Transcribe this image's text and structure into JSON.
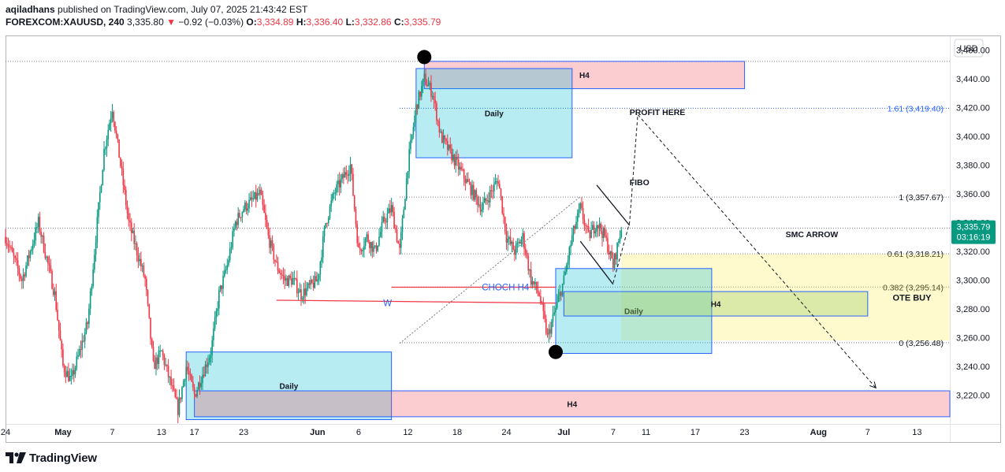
{
  "header": {
    "author": "aqiladhans",
    "published_text": "published on TradingView.com, July 07, 2025 21:43:42 EST",
    "symbol": "FOREXCOM:XAUUSD, 240",
    "last": "3,335.80",
    "change_arrow": "▼",
    "change": "−0.92 (−0.03%)",
    "o_label": "O:",
    "o": "3,334.89",
    "h_label": "H:",
    "h": "3,336.40",
    "l_label": "L:",
    "l": "3,332.86",
    "c_label": "C:",
    "c": "3,335.79"
  },
  "footer": {
    "brand": "TradingView"
  },
  "chart_data": {
    "type": "candlestick",
    "currency": "USD",
    "ylim": [
      3200,
      3470
    ],
    "y_ticks": [
      3220,
      3240,
      3260,
      3280,
      3300,
      3320,
      3340,
      3360,
      3380,
      3400,
      3420,
      3440,
      3460
    ],
    "y_tick_labels": [
      "3,220.00",
      "3,240.00",
      "3,260.00",
      "3,280.00",
      "3,300.00",
      "3,320.00",
      "3,340.00",
      "3,360.00",
      "3,380.00",
      "3,400.00",
      "3,420.00",
      "3,440.00",
      "3,460.00"
    ],
    "x_range": [
      "2025-04-24",
      "2025-08-17"
    ],
    "x_ticks": [
      {
        "date": "2025-04-24",
        "label": "24"
      },
      {
        "date": "2025-05-01",
        "label": "May"
      },
      {
        "date": "2025-05-07",
        "label": "7"
      },
      {
        "date": "2025-05-13",
        "label": "13"
      },
      {
        "date": "2025-05-17",
        "label": "17"
      },
      {
        "date": "2025-05-23",
        "label": "23"
      },
      {
        "date": "2025-06-01",
        "label": "Jun"
      },
      {
        "date": "2025-06-06",
        "label": "6"
      },
      {
        "date": "2025-06-12",
        "label": "12"
      },
      {
        "date": "2025-06-18",
        "label": "18"
      },
      {
        "date": "2025-06-24",
        "label": "24"
      },
      {
        "date": "2025-07-01",
        "label": "Jul"
      },
      {
        "date": "2025-07-07",
        "label": "7"
      },
      {
        "date": "2025-07-11",
        "label": "11"
      },
      {
        "date": "2025-07-17",
        "label": "17"
      },
      {
        "date": "2025-07-23",
        "label": "23"
      },
      {
        "date": "2025-08-01",
        "label": "Aug"
      },
      {
        "date": "2025-08-07",
        "label": "7"
      },
      {
        "date": "2025-08-13",
        "label": "13"
      }
    ],
    "price_path": [
      {
        "date": "2025-04-24",
        "price": 3330
      },
      {
        "date": "2025-04-26",
        "price": 3300
      },
      {
        "date": "2025-04-28",
        "price": 3340
      },
      {
        "date": "2025-04-30",
        "price": 3290
      },
      {
        "date": "2025-05-01",
        "price": 3240
      },
      {
        "date": "2025-05-02",
        "price": 3230
      },
      {
        "date": "2025-05-04",
        "price": 3270
      },
      {
        "date": "2025-05-05",
        "price": 3330
      },
      {
        "date": "2025-05-06",
        "price": 3390
      },
      {
        "date": "2025-05-07",
        "price": 3420
      },
      {
        "date": "2025-05-08",
        "price": 3380
      },
      {
        "date": "2025-05-09",
        "price": 3340
      },
      {
        "date": "2025-05-11",
        "price": 3300
      },
      {
        "date": "2025-05-12",
        "price": 3240
      },
      {
        "date": "2025-05-13",
        "price": 3250
      },
      {
        "date": "2025-05-14",
        "price": 3230
      },
      {
        "date": "2025-05-15",
        "price": 3210
      },
      {
        "date": "2025-05-16",
        "price": 3240
      },
      {
        "date": "2025-05-17",
        "price": 3220
      },
      {
        "date": "2025-05-19",
        "price": 3250
      },
      {
        "date": "2025-05-20",
        "price": 3290
      },
      {
        "date": "2025-05-21",
        "price": 3310
      },
      {
        "date": "2025-05-22",
        "price": 3340
      },
      {
        "date": "2025-05-23",
        "price": 3350
      },
      {
        "date": "2025-05-25",
        "price": 3360
      },
      {
        "date": "2025-05-26",
        "price": 3330
      },
      {
        "date": "2025-05-27",
        "price": 3310
      },
      {
        "date": "2025-05-28",
        "price": 3300
      },
      {
        "date": "2025-05-29",
        "price": 3300
      },
      {
        "date": "2025-05-30",
        "price": 3290
      },
      {
        "date": "2025-06-01",
        "price": 3300
      },
      {
        "date": "2025-06-02",
        "price": 3340
      },
      {
        "date": "2025-06-03",
        "price": 3360
      },
      {
        "date": "2025-06-04",
        "price": 3370
      },
      {
        "date": "2025-06-05",
        "price": 3380
      },
      {
        "date": "2025-06-06",
        "price": 3320
      },
      {
        "date": "2025-06-07",
        "price": 3330
      },
      {
        "date": "2025-06-08",
        "price": 3320
      },
      {
        "date": "2025-06-09",
        "price": 3340
      },
      {
        "date": "2025-06-10",
        "price": 3350
      },
      {
        "date": "2025-06-11",
        "price": 3320
      },
      {
        "date": "2025-06-12",
        "price": 3380
      },
      {
        "date": "2025-06-13",
        "price": 3420
      },
      {
        "date": "2025-06-14",
        "price": 3440
      },
      {
        "date": "2025-06-15",
        "price": 3430
      },
      {
        "date": "2025-06-16",
        "price": 3400
      },
      {
        "date": "2025-06-17",
        "price": 3390
      },
      {
        "date": "2025-06-18",
        "price": 3380
      },
      {
        "date": "2025-06-19",
        "price": 3370
      },
      {
        "date": "2025-06-20",
        "price": 3360
      },
      {
        "date": "2025-06-21",
        "price": 3350
      },
      {
        "date": "2025-06-22",
        "price": 3360
      },
      {
        "date": "2025-06-23",
        "price": 3370
      },
      {
        "date": "2025-06-24",
        "price": 3330
      },
      {
        "date": "2025-06-25",
        "price": 3320
      },
      {
        "date": "2025-06-26",
        "price": 3330
      },
      {
        "date": "2025-06-27",
        "price": 3300
      },
      {
        "date": "2025-06-28",
        "price": 3290
      },
      {
        "date": "2025-06-29",
        "price": 3260
      },
      {
        "date": "2025-06-30",
        "price": 3280
      },
      {
        "date": "2025-07-01",
        "price": 3300
      },
      {
        "date": "2025-07-02",
        "price": 3330
      },
      {
        "date": "2025-07-03",
        "price": 3350
      },
      {
        "date": "2025-07-04",
        "price": 3330
      },
      {
        "date": "2025-07-05",
        "price": 3340
      },
      {
        "date": "2025-07-06",
        "price": 3330
      },
      {
        "date": "2025-07-07",
        "price": 3310
      },
      {
        "date": "2025-07-08",
        "price": 3336
      }
    ],
    "last_price": {
      "label": "3,335.79",
      "countdown": "03:16:19"
    },
    "horizontal_lines": [
      {
        "name": "dotted-high",
        "price": 3452
      },
      {
        "name": "current-price",
        "price": 3336
      }
    ],
    "fibonacci": {
      "start_date": "2025-06-11",
      "end_date": "2025-08-17",
      "levels": [
        {
          "label": "1.61 (3,419.40)",
          "price": 3419.4
        },
        {
          "label": "1 (3,357.67)",
          "price": 3357.67
        },
        {
          "label": "0.61 (3,318.21)",
          "price": 3318.21
        },
        {
          "label": "0.382 (3,295.14)",
          "price": 3295.14
        },
        {
          "label": "0 (3,256.48)",
          "price": 3256.48
        }
      ]
    },
    "zones": [
      {
        "name": "zone-h4-top",
        "label": "H4",
        "type": "h4",
        "x0": "2025-06-14",
        "x1": "2025-07-23",
        "y0": 3433,
        "y1": 3452
      },
      {
        "name": "zone-daily-top",
        "label": "Daily",
        "type": "daily",
        "x0": "2025-06-13",
        "x1": "2025-07-02",
        "y0": 3385,
        "y1": 3447
      },
      {
        "name": "zone-daily-bottom",
        "label": "Daily",
        "type": "daily",
        "x0": "2025-05-16",
        "x1": "2025-06-10",
        "y0": 3203,
        "y1": 3250
      },
      {
        "name": "zone-h4-bottom",
        "label": "H4",
        "type": "h4",
        "x0": "2025-05-17",
        "x1": "2025-08-17",
        "y0": 3205,
        "y1": 3223
      },
      {
        "name": "zone-ote-buy",
        "label": "OTE BUY",
        "type": "ote",
        "x0": "2025-07-08",
        "x1": "2025-08-17",
        "y0": 3258,
        "y1": 3318
      },
      {
        "name": "zone-daily-mid",
        "label": "Daily",
        "type": "daily",
        "x0": "2025-06-30",
        "x1": "2025-07-19",
        "y0": 3249,
        "y1": 3308
      },
      {
        "name": "zone-h4-mid",
        "label": "H4",
        "type": "h4green",
        "x0": "2025-07-01",
        "x1": "2025-08-07",
        "y0": 3275,
        "y1": 3292
      }
    ],
    "annotations": [
      {
        "name": "label-profit-here",
        "text": "PROFIT HERE",
        "date": "2025-07-09",
        "price": 3417
      },
      {
        "name": "label-fibo",
        "text": "FIBO",
        "date": "2025-07-09",
        "price": 3368
      },
      {
        "name": "label-smc-arrow",
        "text": "SMC ARROW",
        "date": "2025-07-28",
        "price": 3332
      },
      {
        "name": "label-choch-h4",
        "text": "CHOCH H4",
        "date": "2025-06-21",
        "price": 3295
      },
      {
        "name": "label-w",
        "text": "W",
        "date": "2025-06-09",
        "price": 3284
      }
    ],
    "markers": [
      {
        "name": "marker-high",
        "date": "2025-06-14",
        "price": 3455
      },
      {
        "name": "marker-low",
        "date": "2025-06-30",
        "price": 3250
      }
    ]
  }
}
